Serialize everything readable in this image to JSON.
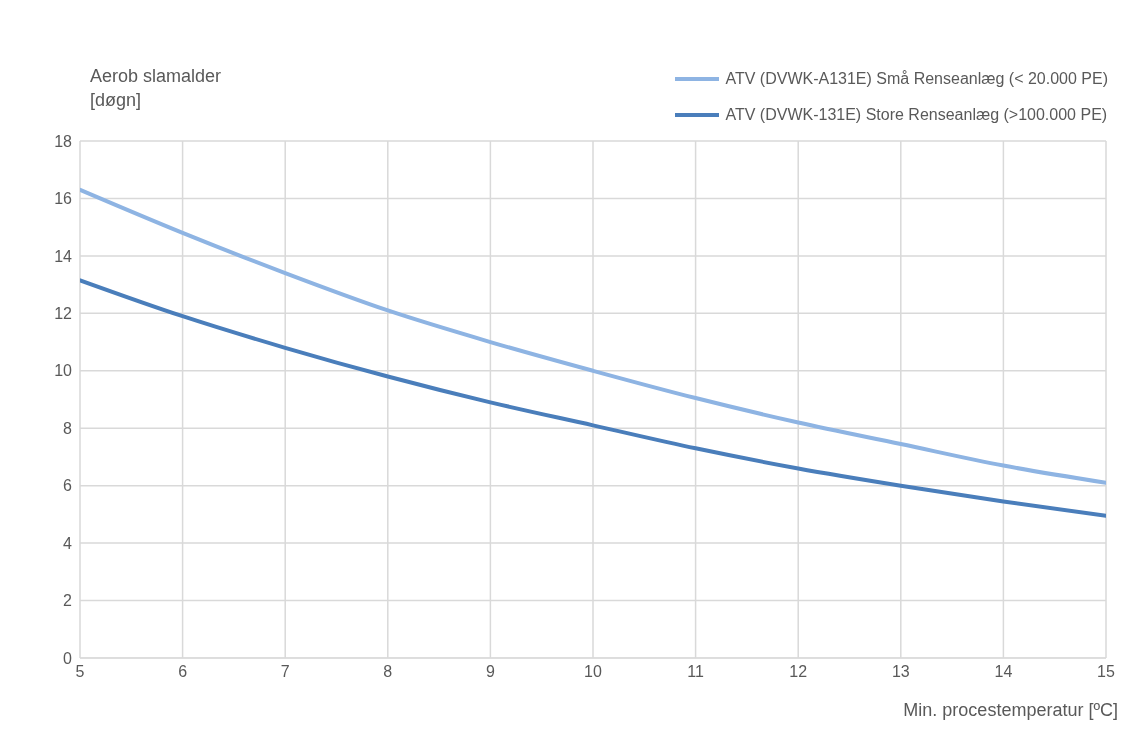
{
  "chart_data": {
    "type": "line",
    "ylabel": "Aerob slamalder\n[døgn]",
    "xlabel": "Min. procestemperatur [ºC]",
    "x": [
      5,
      6,
      7,
      8,
      9,
      10,
      11,
      12,
      13,
      14,
      15
    ],
    "series": [
      {
        "name": "ATV (DVWK-A131E) Små Renseanlæg (< 20.000 PE)",
        "color": "#8eb4e3",
        "values": [
          16.3,
          14.8,
          13.4,
          12.1,
          11.0,
          10.0,
          9.05,
          8.2,
          7.45,
          6.7,
          6.1
        ]
      },
      {
        "name": "ATV (DVWK-131E) Store Renseanlæg (>100.000 PE)",
        "color": "#4a7ebb",
        "values": [
          13.15,
          11.9,
          10.8,
          9.8,
          8.9,
          8.1,
          7.3,
          6.6,
          6.0,
          5.45,
          4.95
        ]
      }
    ],
    "xlim": [
      5,
      15
    ],
    "xticks": [
      5,
      6,
      7,
      8,
      9,
      10,
      11,
      12,
      13,
      14,
      15
    ],
    "ylim": [
      0,
      18
    ],
    "yticks": [
      0,
      2,
      4,
      6,
      8,
      10,
      12,
      14,
      16,
      18
    ],
    "grid": true,
    "legend": "top right",
    "marker": "none",
    "line_style": "solid"
  }
}
